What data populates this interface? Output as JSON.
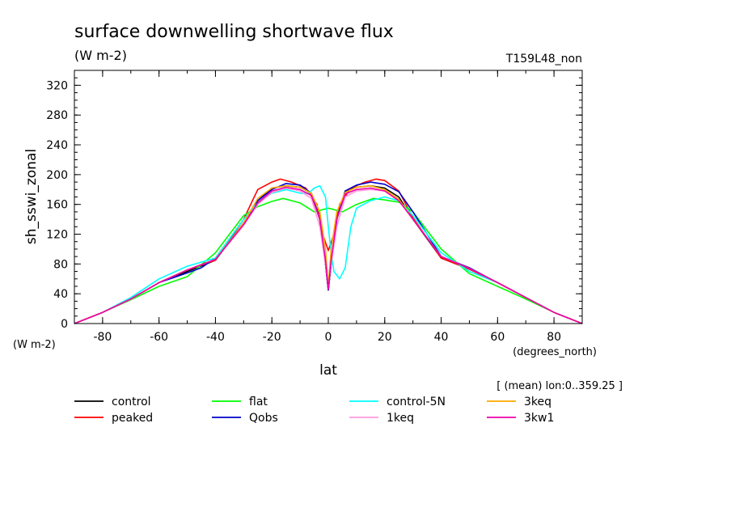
{
  "chart_data": {
    "type": "line",
    "title": "surface downwelling shortwave flux",
    "units": "(W m-2)",
    "experiment": "T159L48_non",
    "ylabel": "sh_sswi_zonal",
    "y_units_label": "(W m-2)",
    "xlabel": "lat",
    "x_units_label": "(degrees_north)",
    "subtitle_note": "[ (mean) lon:0..359.25 ]",
    "xlim": [
      -90,
      90
    ],
    "ylim": [
      0,
      340
    ],
    "x_ticks": [
      -80,
      -60,
      -40,
      -20,
      0,
      20,
      40,
      60,
      80
    ],
    "y_ticks": [
      0,
      40,
      80,
      120,
      160,
      200,
      240,
      280,
      320
    ],
    "x_tick_labels": [
      "-80",
      "-60",
      "-40",
      "-20",
      "0",
      "20",
      "40",
      "60",
      "80"
    ],
    "y_tick_labels": [
      "0",
      "40",
      "80",
      "120",
      "160",
      "200",
      "240",
      "280",
      "320"
    ],
    "grid": false,
    "legend_position": "bottom",
    "series": [
      {
        "name": "control",
        "color": "#000000",
        "points": [
          [
            -90,
            0
          ],
          [
            -80,
            15
          ],
          [
            -70,
            33
          ],
          [
            -60,
            55
          ],
          [
            -50,
            70
          ],
          [
            -40,
            85
          ],
          [
            -30,
            135
          ],
          [
            -25,
            165
          ],
          [
            -20,
            182
          ],
          [
            -15,
            185
          ],
          [
            -10,
            183
          ],
          [
            -6,
            175
          ],
          [
            -3,
            140
          ],
          [
            -1,
            80
          ],
          [
            0,
            45
          ],
          [
            1,
            80
          ],
          [
            3,
            140
          ],
          [
            6,
            178
          ],
          [
            10,
            183
          ],
          [
            15,
            185
          ],
          [
            20,
            182
          ],
          [
            25,
            170
          ],
          [
            30,
            140
          ],
          [
            40,
            88
          ],
          [
            50,
            73
          ],
          [
            60,
            55
          ],
          [
            70,
            35
          ],
          [
            80,
            15
          ],
          [
            90,
            0
          ]
        ]
      },
      {
        "name": "peaked",
        "color": "#ff0000",
        "points": [
          [
            -90,
            0
          ],
          [
            -80,
            15
          ],
          [
            -70,
            33
          ],
          [
            -60,
            55
          ],
          [
            -50,
            72
          ],
          [
            -40,
            85
          ],
          [
            -30,
            140
          ],
          [
            -25,
            180
          ],
          [
            -20,
            190
          ],
          [
            -17,
            194
          ],
          [
            -13,
            190
          ],
          [
            -8,
            182
          ],
          [
            -4,
            160
          ],
          [
            -2,
            120
          ],
          [
            0,
            98
          ],
          [
            2,
            120
          ],
          [
            4,
            160
          ],
          [
            8,
            182
          ],
          [
            13,
            190
          ],
          [
            17,
            194
          ],
          [
            20,
            192
          ],
          [
            25,
            178
          ],
          [
            30,
            142
          ],
          [
            40,
            88
          ],
          [
            50,
            73
          ],
          [
            60,
            55
          ],
          [
            70,
            35
          ],
          [
            80,
            15
          ],
          [
            90,
            0
          ]
        ]
      },
      {
        "name": "flat",
        "color": "#00ff00",
        "points": [
          [
            -90,
            0
          ],
          [
            -80,
            15
          ],
          [
            -70,
            32
          ],
          [
            -60,
            50
          ],
          [
            -50,
            63
          ],
          [
            -40,
            95
          ],
          [
            -30,
            145
          ],
          [
            -25,
            157
          ],
          [
            -20,
            164
          ],
          [
            -16,
            168
          ],
          [
            -10,
            162
          ],
          [
            -5,
            150
          ],
          [
            0,
            155
          ],
          [
            5,
            150
          ],
          [
            10,
            160
          ],
          [
            16,
            168
          ],
          [
            20,
            166
          ],
          [
            25,
            163
          ],
          [
            30,
            150
          ],
          [
            40,
            100
          ],
          [
            50,
            67
          ],
          [
            60,
            50
          ],
          [
            70,
            33
          ],
          [
            80,
            15
          ],
          [
            90,
            0
          ]
        ]
      },
      {
        "name": "Qobs",
        "color": "#0000cc",
        "points": [
          [
            -90,
            0
          ],
          [
            -80,
            15
          ],
          [
            -70,
            33
          ],
          [
            -60,
            55
          ],
          [
            -50,
            68
          ],
          [
            -45,
            75
          ],
          [
            -40,
            88
          ],
          [
            -30,
            135
          ],
          [
            -25,
            165
          ],
          [
            -20,
            180
          ],
          [
            -15,
            188
          ],
          [
            -10,
            186
          ],
          [
            -6,
            175
          ],
          [
            -3,
            140
          ],
          [
            -1,
            80
          ],
          [
            0,
            45
          ],
          [
            1,
            80
          ],
          [
            3,
            140
          ],
          [
            6,
            178
          ],
          [
            10,
            186
          ],
          [
            15,
            190
          ],
          [
            20,
            187
          ],
          [
            25,
            177
          ],
          [
            30,
            150
          ],
          [
            40,
            90
          ],
          [
            50,
            75
          ],
          [
            60,
            55
          ],
          [
            70,
            35
          ],
          [
            80,
            15
          ],
          [
            90,
            0
          ]
        ]
      },
      {
        "name": "control-5N",
        "color": "#00ffff",
        "points": [
          [
            -90,
            0
          ],
          [
            -80,
            15
          ],
          [
            -70,
            35
          ],
          [
            -60,
            60
          ],
          [
            -50,
            77
          ],
          [
            -40,
            88
          ],
          [
            -30,
            140
          ],
          [
            -25,
            162
          ],
          [
            -20,
            175
          ],
          [
            -15,
            180
          ],
          [
            -10,
            175
          ],
          [
            -7,
            175
          ],
          [
            -5,
            182
          ],
          [
            -3,
            185
          ],
          [
            -1,
            170
          ],
          [
            0,
            130
          ],
          [
            1,
            95
          ],
          [
            2,
            70
          ],
          [
            4,
            60
          ],
          [
            6,
            75
          ],
          [
            8,
            130
          ],
          [
            10,
            155
          ],
          [
            15,
            165
          ],
          [
            20,
            170
          ],
          [
            25,
            165
          ],
          [
            30,
            145
          ],
          [
            40,
            95
          ],
          [
            50,
            70
          ],
          [
            60,
            55
          ],
          [
            70,
            35
          ],
          [
            80,
            15
          ],
          [
            90,
            0
          ]
        ]
      },
      {
        "name": "1keq",
        "color": "#ff99dd",
        "points": [
          [
            -90,
            0
          ],
          [
            -80,
            15
          ],
          [
            -70,
            33
          ],
          [
            -60,
            55
          ],
          [
            -50,
            72
          ],
          [
            -40,
            86
          ],
          [
            -30,
            132
          ],
          [
            -25,
            160
          ],
          [
            -20,
            176
          ],
          [
            -15,
            182
          ],
          [
            -10,
            178
          ],
          [
            -6,
            168
          ],
          [
            -3,
            130
          ],
          [
            -1,
            80
          ],
          [
            0,
            48
          ],
          [
            1,
            80
          ],
          [
            3,
            130
          ],
          [
            6,
            170
          ],
          [
            10,
            178
          ],
          [
            15,
            180
          ],
          [
            20,
            178
          ],
          [
            25,
            165
          ],
          [
            30,
            140
          ],
          [
            40,
            90
          ],
          [
            50,
            74
          ],
          [
            60,
            55
          ],
          [
            70,
            35
          ],
          [
            80,
            15
          ],
          [
            90,
            0
          ]
        ]
      },
      {
        "name": "3keq",
        "color": "#ffaa00",
        "points": [
          [
            -90,
            0
          ],
          [
            -80,
            15
          ],
          [
            -70,
            33
          ],
          [
            -60,
            55
          ],
          [
            -50,
            72
          ],
          [
            -40,
            86
          ],
          [
            -30,
            135
          ],
          [
            -25,
            168
          ],
          [
            -20,
            182
          ],
          [
            -15,
            185
          ],
          [
            -10,
            183
          ],
          [
            -6,
            175
          ],
          [
            -3,
            150
          ],
          [
            -1,
            100
          ],
          [
            0,
            50
          ],
          [
            1,
            100
          ],
          [
            3,
            150
          ],
          [
            6,
            176
          ],
          [
            10,
            183
          ],
          [
            15,
            185
          ],
          [
            20,
            180
          ],
          [
            25,
            167
          ],
          [
            30,
            140
          ],
          [
            40,
            90
          ],
          [
            50,
            74
          ],
          [
            60,
            55
          ],
          [
            70,
            35
          ],
          [
            80,
            15
          ],
          [
            90,
            0
          ]
        ]
      },
      {
        "name": "3kw1",
        "color": "#ee00aa",
        "points": [
          [
            -90,
            0
          ],
          [
            -80,
            15
          ],
          [
            -70,
            33
          ],
          [
            -60,
            55
          ],
          [
            -50,
            72
          ],
          [
            -40,
            86
          ],
          [
            -30,
            133
          ],
          [
            -25,
            162
          ],
          [
            -20,
            178
          ],
          [
            -15,
            183
          ],
          [
            -10,
            180
          ],
          [
            -6,
            172
          ],
          [
            -3,
            140
          ],
          [
            -1,
            85
          ],
          [
            0,
            46
          ],
          [
            1,
            85
          ],
          [
            3,
            140
          ],
          [
            6,
            174
          ],
          [
            10,
            180
          ],
          [
            15,
            182
          ],
          [
            20,
            178
          ],
          [
            25,
            165
          ],
          [
            30,
            140
          ],
          [
            40,
            90
          ],
          [
            50,
            74
          ],
          [
            60,
            55
          ],
          [
            70,
            35
          ],
          [
            80,
            15
          ],
          [
            90,
            0
          ]
        ]
      }
    ]
  }
}
